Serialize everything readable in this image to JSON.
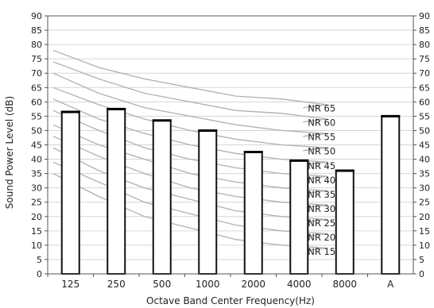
{
  "chart_data": {
    "type": "bar",
    "title": "",
    "xlabel": "Octave Band Center Frequency(Hz)",
    "ylabel": "Sound Power Level (dB)",
    "ylim": [
      0,
      90
    ],
    "yticks": [
      0,
      5,
      10,
      15,
      20,
      25,
      30,
      35,
      40,
      45,
      50,
      55,
      60,
      65,
      70,
      75,
      80,
      85,
      90
    ],
    "grid": true,
    "secondary_y_axis": true,
    "categories": [
      "125",
      "250",
      "500",
      "1000",
      "2000",
      "4000",
      "8000",
      "A"
    ],
    "values": [
      56.5,
      57.5,
      53.5,
      50,
      42.5,
      39.5,
      36,
      55
    ],
    "nr_curves": [
      {
        "name": "NR 65",
        "values": [
          78,
          72,
          68,
          65,
          62,
          61,
          59,
          58
        ]
      },
      {
        "name": "NR 60",
        "values": [
          74,
          68,
          63,
          60,
          57,
          56,
          54,
          53
        ]
      },
      {
        "name": "NR 55",
        "values": [
          70,
          63,
          58,
          55,
          52,
          50,
          49,
          48
        ]
      },
      {
        "name": "NR 50",
        "values": [
          65,
          59,
          54,
          50,
          47,
          45,
          44,
          43
        ]
      },
      {
        "name": "NR 45",
        "values": [
          61,
          54,
          49,
          45,
          42,
          40,
          39,
          38
        ]
      },
      {
        "name": "NR 40",
        "values": [
          57,
          50,
          44,
          40,
          37,
          35,
          34,
          33
        ]
      },
      {
        "name": "NR 35",
        "values": [
          52,
          45,
          40,
          35,
          32,
          30,
          29,
          28
        ]
      },
      {
        "name": "NR 30",
        "values": [
          48,
          41,
          35,
          30,
          27,
          25,
          24,
          23
        ]
      },
      {
        "name": "NR 25",
        "values": [
          44,
          36,
          30,
          26,
          22,
          20,
          19,
          18
        ]
      },
      {
        "name": "NR 20",
        "values": [
          39,
          32,
          25,
          21,
          17,
          15,
          14,
          13
        ]
      },
      {
        "name": "NR 15",
        "values": [
          35,
          27,
          20,
          16,
          12,
          10,
          9,
          8
        ]
      }
    ]
  }
}
